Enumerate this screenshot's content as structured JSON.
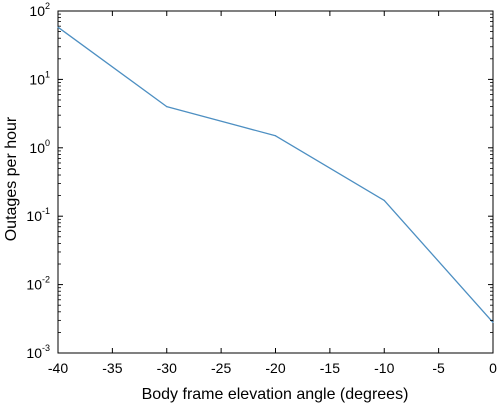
{
  "chart_data": {
    "type": "line",
    "title": "",
    "xlabel": "Body frame elevation angle (degrees)",
    "ylabel": "Outages per hour",
    "xlim": [
      -40,
      0
    ],
    "ylim": [
      0.001,
      100
    ],
    "yscale": "log",
    "grid": false,
    "legend": "none",
    "x_ticks": [
      -40,
      -35,
      -30,
      -25,
      -20,
      -15,
      -10,
      -5,
      0
    ],
    "x_tick_labels": [
      "-40",
      "-35",
      "-30",
      "-25",
      "-20",
      "-15",
      "-10",
      "-5",
      "0"
    ],
    "y_ticks": [
      {
        "value": 0.001,
        "base": "10",
        "exp": "-3"
      },
      {
        "value": 0.01,
        "base": "10",
        "exp": "-2"
      },
      {
        "value": 0.1,
        "base": "10",
        "exp": "-1"
      },
      {
        "value": 1,
        "base": "10",
        "exp": "0"
      },
      {
        "value": 10,
        "base": "10",
        "exp": "1"
      },
      {
        "value": 100,
        "base": "10",
        "exp": "2"
      }
    ],
    "series": [
      {
        "color": "#4d8fc2",
        "x": [
          -40,
          -30,
          -20,
          -10,
          0
        ],
        "y": [
          58,
          4,
          1.5,
          0.17,
          0.0028
        ]
      }
    ]
  }
}
